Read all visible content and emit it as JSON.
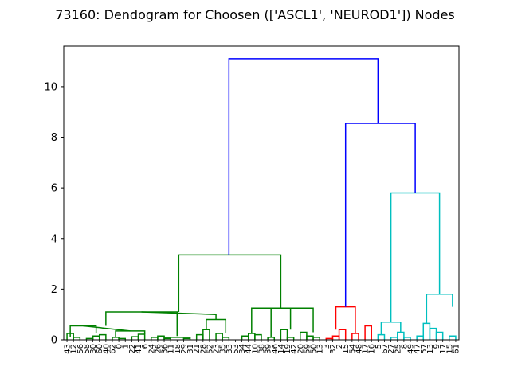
{
  "chart_data": {
    "type": "dendrogram",
    "title": "73160: Dendogram for Choosen (['ASCL1', 'NEUROD1']) Nodes",
    "xlabel": "",
    "ylabel": "",
    "ylim": [
      0,
      11.6
    ],
    "yticks": [
      0,
      2,
      4,
      6,
      8,
      10
    ],
    "grid": false,
    "leaf_labels": [
      "43",
      "12",
      "56",
      "58",
      "30",
      "60",
      "40",
      "62",
      "0",
      "1",
      "22",
      "41",
      "6",
      "24",
      "26",
      "36",
      "11",
      "18",
      "29",
      "31",
      "21",
      "28",
      "52",
      "23",
      "35",
      "33",
      "53",
      "34",
      "44",
      "10",
      "38",
      "39",
      "46",
      "14",
      "19",
      "42",
      "20",
      "59",
      "50",
      "13",
      "3",
      "32",
      "2",
      "15",
      "54",
      "48",
      "17",
      "16",
      "5",
      "67",
      "27",
      "25",
      "8",
      "49",
      "47",
      "57",
      "13",
      "9",
      "17",
      "15",
      "61"
    ],
    "link_colors": {
      "cluster_1": "#008000",
      "cluster_2": "#ff0000",
      "cluster_3": "#00bfbf",
      "above_threshold": "#0000ff"
    },
    "merges": [
      {
        "i0": 0,
        "i1": 1,
        "h": 0.25,
        "c": "#008000"
      },
      {
        "i0": 1,
        "i1": 2,
        "h": 0.1,
        "c": "#008000"
      },
      {
        "i0": 3,
        "i1": 4,
        "h": 0.05,
        "c": "#008000"
      },
      {
        "i0": 4,
        "i1": 5,
        "h": 0.15,
        "c": "#008000"
      },
      {
        "i0": 5,
        "i1": 6,
        "h": 0.2,
        "c": "#008000"
      },
      {
        "i0": 7,
        "i1": 8,
        "h": 0.1,
        "c": "#008000"
      },
      {
        "i0": 8,
        "i1": 9,
        "h": 0.05,
        "c": "#008000"
      },
      {
        "i0": 10,
        "i1": 11,
        "h": 0.12,
        "c": "#008000"
      },
      {
        "i0": 11,
        "i1": 12,
        "h": 0.22,
        "c": "#008000"
      },
      {
        "i0": 13,
        "i1": 14,
        "h": 0.1,
        "c": "#008000"
      },
      {
        "i0": 14,
        "i1": 15,
        "h": 0.15,
        "c": "#008000"
      },
      {
        "i0": 15,
        "i1": 16,
        "h": 0.05,
        "c": "#008000"
      },
      {
        "i0": 18,
        "i1": 19,
        "h": 0.05,
        "c": "#008000"
      },
      {
        "i0": 20,
        "i1": 21,
        "h": 0.2,
        "c": "#008000"
      },
      {
        "i0": 21,
        "i1": 22,
        "h": 0.4,
        "c": "#008000"
      },
      {
        "i0": 23,
        "i1": 24,
        "h": 0.25,
        "c": "#008000"
      },
      {
        "i0": 24,
        "i1": 25,
        "h": 0.1,
        "c": "#008000"
      },
      {
        "i0": 27,
        "i1": 28,
        "h": 0.15,
        "c": "#008000"
      },
      {
        "i0": 28,
        "i1": 29,
        "h": 0.25,
        "c": "#008000"
      },
      {
        "i0": 29,
        "i1": 30,
        "h": 0.2,
        "c": "#008000"
      },
      {
        "i0": 31,
        "i1": 32,
        "h": 0.1,
        "c": "#008000"
      },
      {
        "i0": 33,
        "i1": 34,
        "h": 0.4,
        "c": "#008000"
      },
      {
        "i0": 34,
        "i1": 35,
        "h": 0.1,
        "c": "#008000"
      },
      {
        "i0": 36,
        "i1": 37,
        "h": 0.3,
        "c": "#008000"
      },
      {
        "i0": 37,
        "i1": 38,
        "h": 0.15,
        "c": "#008000"
      },
      {
        "i0": 38,
        "i1": 39,
        "h": 0.1,
        "c": "#008000"
      },
      {
        "i0": 40,
        "i1": 41,
        "h": 0.05,
        "c": "#ff0000"
      },
      {
        "i0": 41,
        "i1": 42,
        "h": 0.15,
        "c": "#ff0000"
      },
      {
        "i0": 42,
        "i1": 43,
        "h": 0.4,
        "c": "#ff0000"
      },
      {
        "i0": 44,
        "i1": 45,
        "h": 0.25,
        "c": "#ff0000"
      },
      {
        "i0": 46,
        "i1": 47,
        "h": 0.55,
        "c": "#ff0000"
      },
      {
        "i0": 48,
        "i1": 49,
        "h": 0.2,
        "c": "#00bfbf"
      },
      {
        "i0": 50,
        "i1": 51,
        "h": 0.1,
        "c": "#00bfbf"
      },
      {
        "i0": 51,
        "i1": 52,
        "h": 0.3,
        "c": "#00bfbf"
      },
      {
        "i0": 52,
        "i1": 53,
        "h": 0.1,
        "c": "#00bfbf"
      },
      {
        "i0": 54,
        "i1": 55,
        "h": 0.15,
        "c": "#00bfbf"
      },
      {
        "i0": 55,
        "i1": 56,
        "h": 0.65,
        "c": "#00bfbf"
      },
      {
        "i0": 56,
        "i1": 57,
        "h": 0.45,
        "c": "#00bfbf"
      },
      {
        "i0": 57,
        "i1": 58,
        "h": 0.3,
        "c": "#00bfbf"
      },
      {
        "i0": 59,
        "i1": 60,
        "h": 0.15,
        "c": "#00bfbf"
      }
    ],
    "links": [
      {
        "c": "#008000",
        "x": [
          0.5,
          0.5,
          4.5,
          4.5
        ],
        "y": [
          0.1,
          0.55,
          0.55,
          0.25
        ]
      },
      {
        "c": "#008000",
        "x": [
          7.5,
          7.5,
          12.0,
          12.0
        ],
        "y": [
          0.1,
          0.35,
          0.35,
          0.22
        ]
      },
      {
        "c": "#008000",
        "x": [
          2.5,
          2.5,
          9.75,
          9.75
        ],
        "y": [
          0.55,
          0.55,
          0.35,
          0.35
        ]
      },
      {
        "c": "#008000",
        "x": [
          15.0,
          15.0,
          19.0,
          19.0
        ],
        "y": [
          0.15,
          0.1,
          0.1,
          0.05
        ]
      },
      {
        "c": "#008000",
        "x": [
          6.0,
          6.0,
          17.0,
          17.0
        ],
        "y": [
          0.55,
          1.1,
          1.1,
          0.15
        ]
      },
      {
        "c": "#008000",
        "x": [
          21.5,
          21.5,
          24.5,
          24.5
        ],
        "y": [
          0.4,
          0.8,
          0.8,
          0.25
        ]
      },
      {
        "c": "#008000",
        "x": [
          11.5,
          11.5,
          23.0,
          23.0
        ],
        "y": [
          1.1,
          1.1,
          1.0,
          0.8
        ]
      },
      {
        "c": "#008000",
        "x": [
          28.5,
          28.5,
          31.5,
          31.5
        ],
        "y": [
          0.25,
          1.25,
          1.25,
          0.1
        ]
      },
      {
        "c": "#008000",
        "x": [
          34.5,
          34.5,
          38.0,
          38.0
        ],
        "y": [
          0.4,
          1.25,
          1.25,
          0.3
        ]
      },
      {
        "c": "#008000",
        "x": [
          30.0,
          30.0,
          36.25,
          36.25
        ],
        "y": [
          1.25,
          1.25,
          1.25,
          1.25
        ]
      },
      {
        "c": "#008000",
        "x": [
          17.25,
          17.25,
          33.0,
          33.0
        ],
        "y": [
          1.1,
          3.35,
          3.35,
          1.25
        ]
      },
      {
        "c": "#ff0000",
        "x": [
          41.5,
          41.5,
          44.5,
          44.5
        ],
        "y": [
          0.4,
          1.3,
          1.3,
          0.25
        ]
      },
      {
        "c": "#00bfbf",
        "x": [
          48.5,
          48.5,
          51.5,
          51.5
        ],
        "y": [
          0.2,
          0.7,
          0.7,
          0.3
        ]
      },
      {
        "c": "#00bfbf",
        "x": [
          55.5,
          55.5,
          59.5,
          59.5
        ],
        "y": [
          0.65,
          1.8,
          1.8,
          1.3
        ]
      },
      {
        "c": "#00bfbf",
        "x": [
          50.0,
          50.0,
          57.5,
          57.5
        ],
        "y": [
          0.7,
          5.8,
          5.8,
          1.8
        ]
      },
      {
        "c": "#0000ff",
        "x": [
          43.0,
          43.0,
          53.75,
          53.75
        ],
        "y": [
          1.3,
          8.55,
          8.55,
          5.8
        ]
      },
      {
        "c": "#0000ff",
        "x": [
          25.0,
          25.0,
          48.0,
          48.0
        ],
        "y": [
          3.35,
          11.1,
          11.1,
          8.55
        ]
      }
    ]
  }
}
